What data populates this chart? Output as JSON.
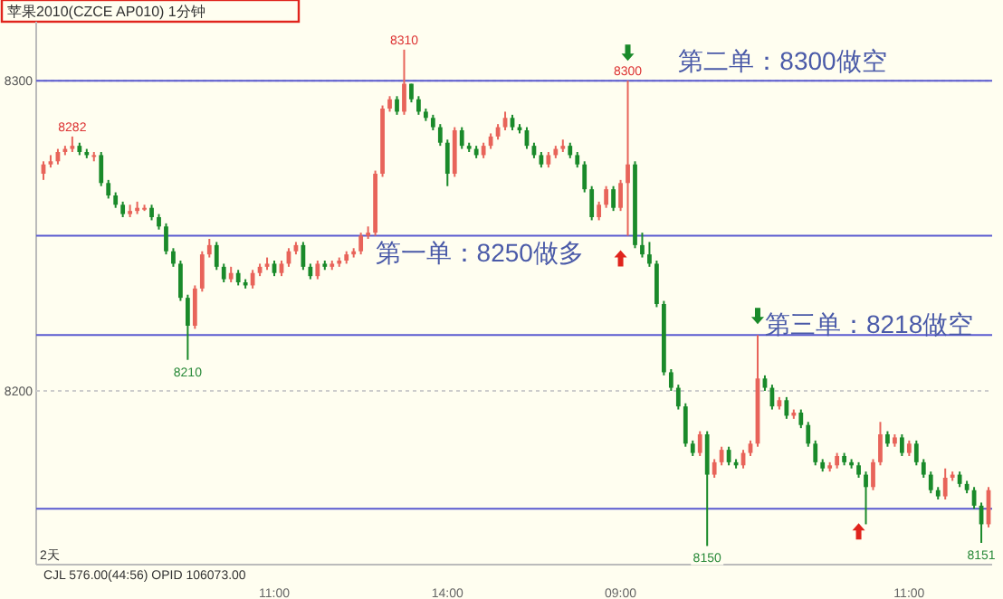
{
  "chart_data": {
    "type": "candlestick",
    "title": "苹果2010(CZCE AP010)  1分钟",
    "categories": [
      null,
      null,
      null,
      null,
      null,
      null,
      null,
      null,
      null,
      null,
      null,
      null,
      null,
      null,
      null,
      null,
      null,
      null,
      null,
      null,
      null,
      null,
      null,
      null,
      null,
      null,
      null,
      null,
      null,
      null,
      null,
      null,
      "11:00",
      null,
      null,
      null,
      null,
      null,
      null,
      null,
      null,
      null,
      null,
      null,
      null,
      null,
      null,
      null,
      null,
      null,
      null,
      null,
      null,
      null,
      null,
      null,
      "14:00",
      null,
      null,
      null,
      null,
      null,
      null,
      null,
      null,
      null,
      null,
      null,
      null,
      null,
      null,
      null,
      null,
      null,
      null,
      null,
      null,
      null,
      null,
      null,
      "09:00",
      null,
      null,
      null,
      null,
      null,
      null,
      null,
      null,
      null,
      null,
      null,
      null,
      null,
      null,
      null,
      null,
      null,
      null,
      null,
      null,
      null,
      null,
      null,
      null,
      null,
      null,
      null,
      null,
      null,
      null,
      null,
      null,
      null,
      null,
      null,
      null,
      null,
      null,
      null,
      "11:00",
      null,
      null,
      null,
      null,
      null,
      null,
      null,
      null,
      null,
      null,
      null
    ],
    "ohlc": [
      [
        8270,
        8274,
        8268,
        8273
      ],
      [
        8273,
        8276,
        8272,
        8274
      ],
      [
        8274,
        8278,
        8273,
        8277
      ],
      [
        8277,
        8279,
        8276,
        8278
      ],
      [
        8278,
        8282,
        8277,
        8279
      ],
      [
        8279,
        8280,
        8276,
        8277
      ],
      [
        8277,
        8278,
        8275,
        8276
      ],
      [
        8276,
        8277,
        8274,
        8276
      ],
      [
        8276,
        8277,
        8266,
        8267
      ],
      [
        8267,
        8268,
        8262,
        8263
      ],
      [
        8263,
        8264,
        8259,
        8260
      ],
      [
        8260,
        8261,
        8256,
        8257
      ],
      [
        8257,
        8260,
        8256,
        8258
      ],
      [
        8258,
        8261,
        8257,
        8259
      ],
      [
        8259,
        8260,
        8258,
        8259
      ],
      [
        8259,
        8260,
        8255,
        8256
      ],
      [
        8256,
        8257,
        8252,
        8253
      ],
      [
        8253,
        8254,
        8244,
        8245
      ],
      [
        8245,
        8246,
        8240,
        8241
      ],
      [
        8241,
        8242,
        8229,
        8230
      ],
      [
        8230,
        8231,
        8210,
        8221
      ],
      [
        8221,
        8234,
        8220,
        8233
      ],
      [
        8233,
        8245,
        8232,
        8244
      ],
      [
        8244,
        8249,
        8243,
        8247
      ],
      [
        8247,
        8248,
        8239,
        8240
      ],
      [
        8240,
        8241,
        8235,
        8236
      ],
      [
        8236,
        8240,
        8235,
        8238
      ],
      [
        8238,
        8239,
        8234,
        8235
      ],
      [
        8235,
        8236,
        8233,
        8234
      ],
      [
        8234,
        8239,
        8233,
        8238
      ],
      [
        8238,
        8241,
        8237,
        8240
      ],
      [
        8240,
        8243,
        8239,
        8241
      ],
      [
        8241,
        8242,
        8237,
        8238
      ],
      [
        8238,
        8242,
        8237,
        8241
      ],
      [
        8241,
        8246,
        8240,
        8245
      ],
      [
        8245,
        8248,
        8244,
        8247
      ],
      [
        8247,
        8248,
        8239,
        8240
      ],
      [
        8240,
        8241,
        8236,
        8237
      ],
      [
        8237,
        8242,
        8236,
        8241
      ],
      [
        8241,
        8242,
        8239,
        8240
      ],
      [
        8240,
        8242,
        8239,
        8241
      ],
      [
        8241,
        8243,
        8240,
        8242
      ],
      [
        8242,
        8245,
        8241,
        8244
      ],
      [
        8244,
        8246,
        8243,
        8245
      ],
      [
        8245,
        8251,
        8244,
        8250
      ],
      [
        8250,
        8253,
        8249,
        8251
      ],
      [
        8251,
        8271,
        8250,
        8270
      ],
      [
        8270,
        8292,
        8269,
        8291
      ],
      [
        8291,
        8295,
        8290,
        8294
      ],
      [
        8294,
        8295,
        8289,
        8290
      ],
      [
        8290,
        8310,
        8289,
        8299
      ],
      [
        8299,
        8299,
        8293,
        8294
      ],
      [
        8294,
        8295,
        8289,
        8290
      ],
      [
        8290,
        8291,
        8287,
        8288
      ],
      [
        8288,
        8289,
        8284,
        8285
      ],
      [
        8285,
        8286,
        8279,
        8280
      ],
      [
        8280,
        8281,
        8266,
        8270
      ],
      [
        8270,
        8285,
        8269,
        8284
      ],
      [
        8284,
        8285,
        8278,
        8279
      ],
      [
        8279,
        8280,
        8277,
        8278
      ],
      [
        8278,
        8279,
        8275,
        8276
      ],
      [
        8276,
        8280,
        8275,
        8279
      ],
      [
        8279,
        8283,
        8278,
        8282
      ],
      [
        8282,
        8286,
        8281,
        8285
      ],
      [
        8285,
        8290,
        8284,
        8288
      ],
      [
        8288,
        8289,
        8284,
        8285
      ],
      [
        8285,
        8286,
        8283,
        8284
      ],
      [
        8284,
        8285,
        8278,
        8279
      ],
      [
        8279,
        8280,
        8275,
        8276
      ],
      [
        8276,
        8277,
        8272,
        8273
      ],
      [
        8273,
        8277,
        8272,
        8276
      ],
      [
        8276,
        8279,
        8275,
        8278
      ],
      [
        8278,
        8281,
        8277,
        8279
      ],
      [
        8279,
        8280,
        8275,
        8276
      ],
      [
        8276,
        8277,
        8272,
        8273
      ],
      [
        8273,
        8274,
        8264,
        8265
      ],
      [
        8265,
        8266,
        8255,
        8256
      ],
      [
        8256,
        8261,
        8255,
        8260
      ],
      [
        8260,
        8266,
        8259,
        8265
      ],
      [
        8265,
        8266,
        8258,
        8259
      ],
      [
        8259,
        8268,
        8258,
        8267
      ],
      [
        8267,
        8300,
        8250,
        8273
      ],
      [
        8273,
        8274,
        8246,
        8247
      ],
      [
        8247,
        8251,
        8243,
        8244
      ],
      [
        8244,
        8248,
        8240,
        8241
      ],
      [
        8241,
        8242,
        8227,
        8228
      ],
      [
        8228,
        8229,
        8205,
        8206
      ],
      [
        8206,
        8207,
        8200,
        8201
      ],
      [
        8201,
        8202,
        8194,
        8195
      ],
      [
        8195,
        8196,
        8182,
        8183
      ],
      [
        8183,
        8184,
        8179,
        8180
      ],
      [
        8180,
        8187,
        8179,
        8186
      ],
      [
        8186,
        8187,
        8150,
        8173
      ],
      [
        8173,
        8178,
        8172,
        8177
      ],
      [
        8177,
        8182,
        8176,
        8181
      ],
      [
        8181,
        8182,
        8176,
        8177
      ],
      [
        8177,
        8178,
        8175,
        8176
      ],
      [
        8176,
        8181,
        8175,
        8180
      ],
      [
        8180,
        8184,
        8179,
        8183
      ],
      [
        8183,
        8218,
        8182,
        8204
      ],
      [
        8204,
        8205,
        8200,
        8201
      ],
      [
        8201,
        8202,
        8194,
        8195
      ],
      [
        8195,
        8198,
        8194,
        8197
      ],
      [
        8197,
        8198,
        8191,
        8192
      ],
      [
        8192,
        8194,
        8191,
        8193
      ],
      [
        8193,
        8194,
        8188,
        8189
      ],
      [
        8189,
        8190,
        8182,
        8183
      ],
      [
        8183,
        8184,
        8176,
        8177
      ],
      [
        8177,
        8178,
        8174,
        8175
      ],
      [
        8175,
        8177,
        8174,
        8176
      ],
      [
        8176,
        8180,
        8175,
        8179
      ],
      [
        8179,
        8180,
        8176,
        8177
      ],
      [
        8177,
        8178,
        8175,
        8176
      ],
      [
        8176,
        8177,
        8172,
        8173
      ],
      [
        8173,
        8174,
        8157,
        8169
      ],
      [
        8169,
        8178,
        8168,
        8177
      ],
      [
        8177,
        8190,
        8176,
        8186
      ],
      [
        8186,
        8187,
        8182,
        8183
      ],
      [
        8183,
        8186,
        8182,
        8185
      ],
      [
        8185,
        8186,
        8179,
        8180
      ],
      [
        8180,
        8184,
        8179,
        8183
      ],
      [
        8183,
        8184,
        8176,
        8177
      ],
      [
        8177,
        8178,
        8172,
        8173
      ],
      [
        8173,
        8174,
        8167,
        8168
      ],
      [
        8168,
        8169,
        8165,
        8166
      ],
      [
        8166,
        8175,
        8165,
        8172
      ],
      [
        8172,
        8174,
        8171,
        8173
      ],
      [
        8173,
        8174,
        8169,
        8170
      ],
      [
        8170,
        8171,
        8167,
        8168
      ],
      [
        8168,
        8169,
        8162,
        8163
      ],
      [
        8163,
        8164,
        8151,
        8157
      ],
      [
        8157,
        8169,
        8156,
        8168
      ]
    ],
    "ylim": [
      8144,
      8319
    ],
    "yticks": [
      8200,
      8300
    ],
    "grid": "y",
    "ref_lines": [
      {
        "axis": "y",
        "value": 8300,
        "label": "第二单：8300做空",
        "color": "#5a5ad0"
      },
      {
        "axis": "y",
        "value": 8250,
        "label": "第一单：8250做多",
        "color": "#5a5ad0"
      },
      {
        "axis": "y",
        "value": 8218,
        "label": "第三单：8218做空",
        "color": "#5a5ad0"
      },
      {
        "axis": "y",
        "value": 8162,
        "label": null,
        "color": "#5a5ad0"
      }
    ],
    "annotations": [
      {
        "text": "8282",
        "y": 8282
      },
      {
        "text": "8310",
        "y": 8310
      },
      {
        "text": "8300",
        "y": 8300
      },
      {
        "text": "8210",
        "y": 8210
      },
      {
        "text": "8150",
        "y": 8150
      },
      {
        "text": "8151",
        "y": 8151
      },
      "2天",
      "CJL  576.00(44:56)  OPID 106073.00"
    ]
  }
}
